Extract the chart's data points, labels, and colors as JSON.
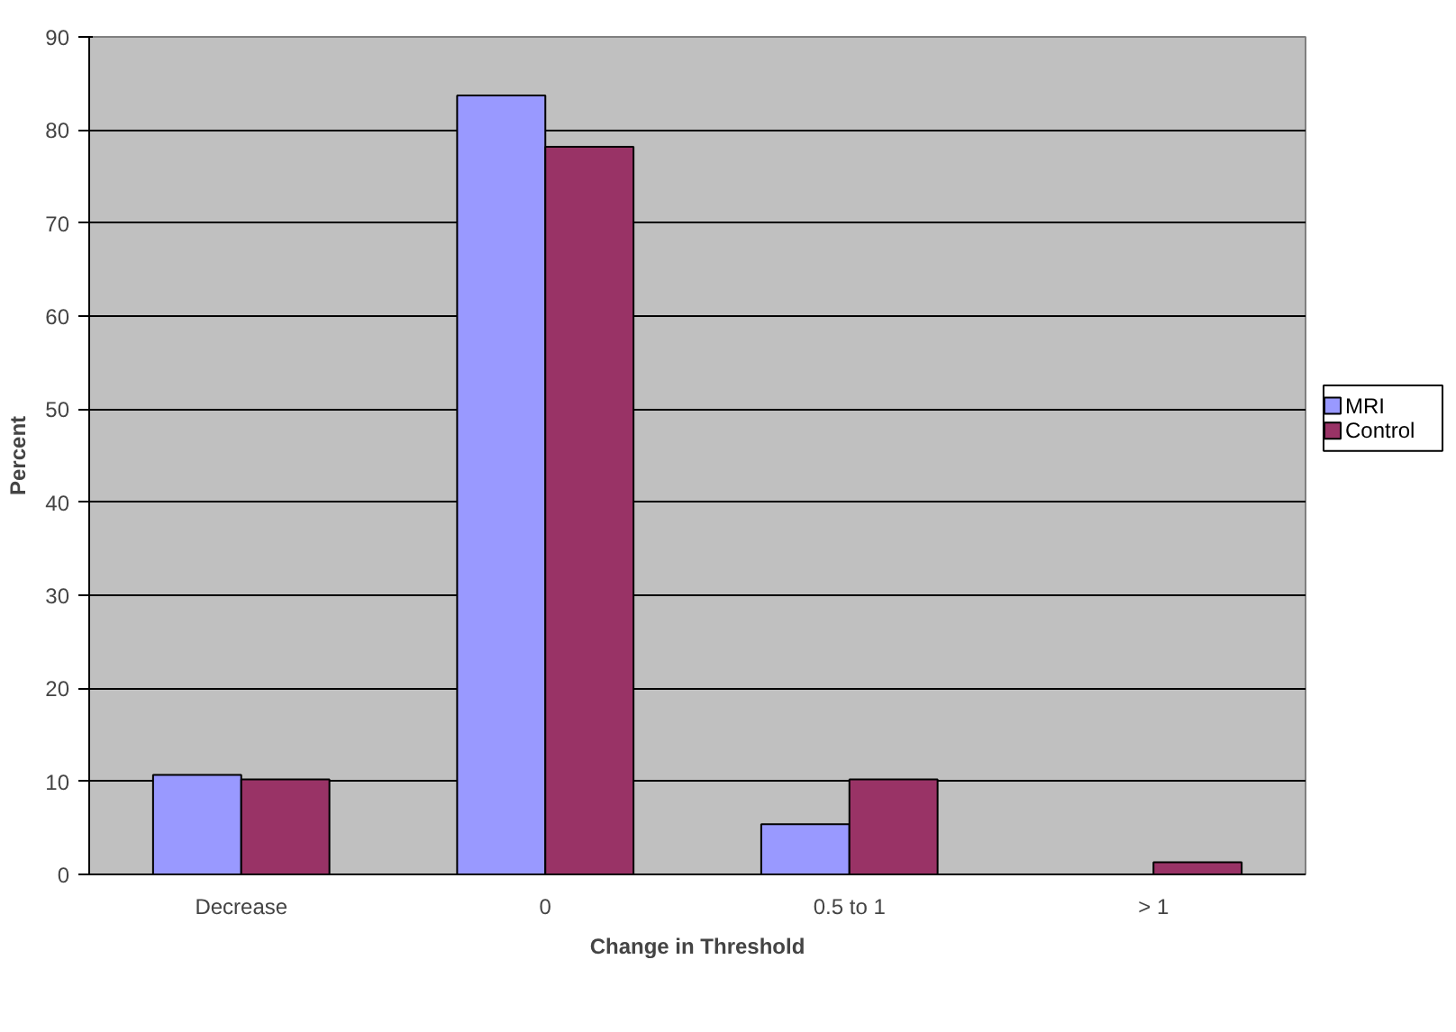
{
  "chart_data": {
    "type": "bar",
    "xlabel": "Change in Threshold",
    "ylabel": "Percent",
    "categories": [
      "Decrease",
      "0",
      "0.5 to 1",
      "> 1"
    ],
    "series": [
      {
        "name": "MRI",
        "color": "#9999ff",
        "values": [
          10.7,
          83.7,
          5.4,
          0
        ]
      },
      {
        "name": "Control",
        "color": "#993366",
        "values": [
          10.2,
          78.2,
          10.2,
          1.3
        ]
      }
    ],
    "ylim": [
      0,
      90
    ],
    "yticks": [
      0,
      10,
      20,
      30,
      40,
      50,
      60,
      70,
      80,
      90
    ],
    "grid": "y",
    "legend": "right"
  }
}
